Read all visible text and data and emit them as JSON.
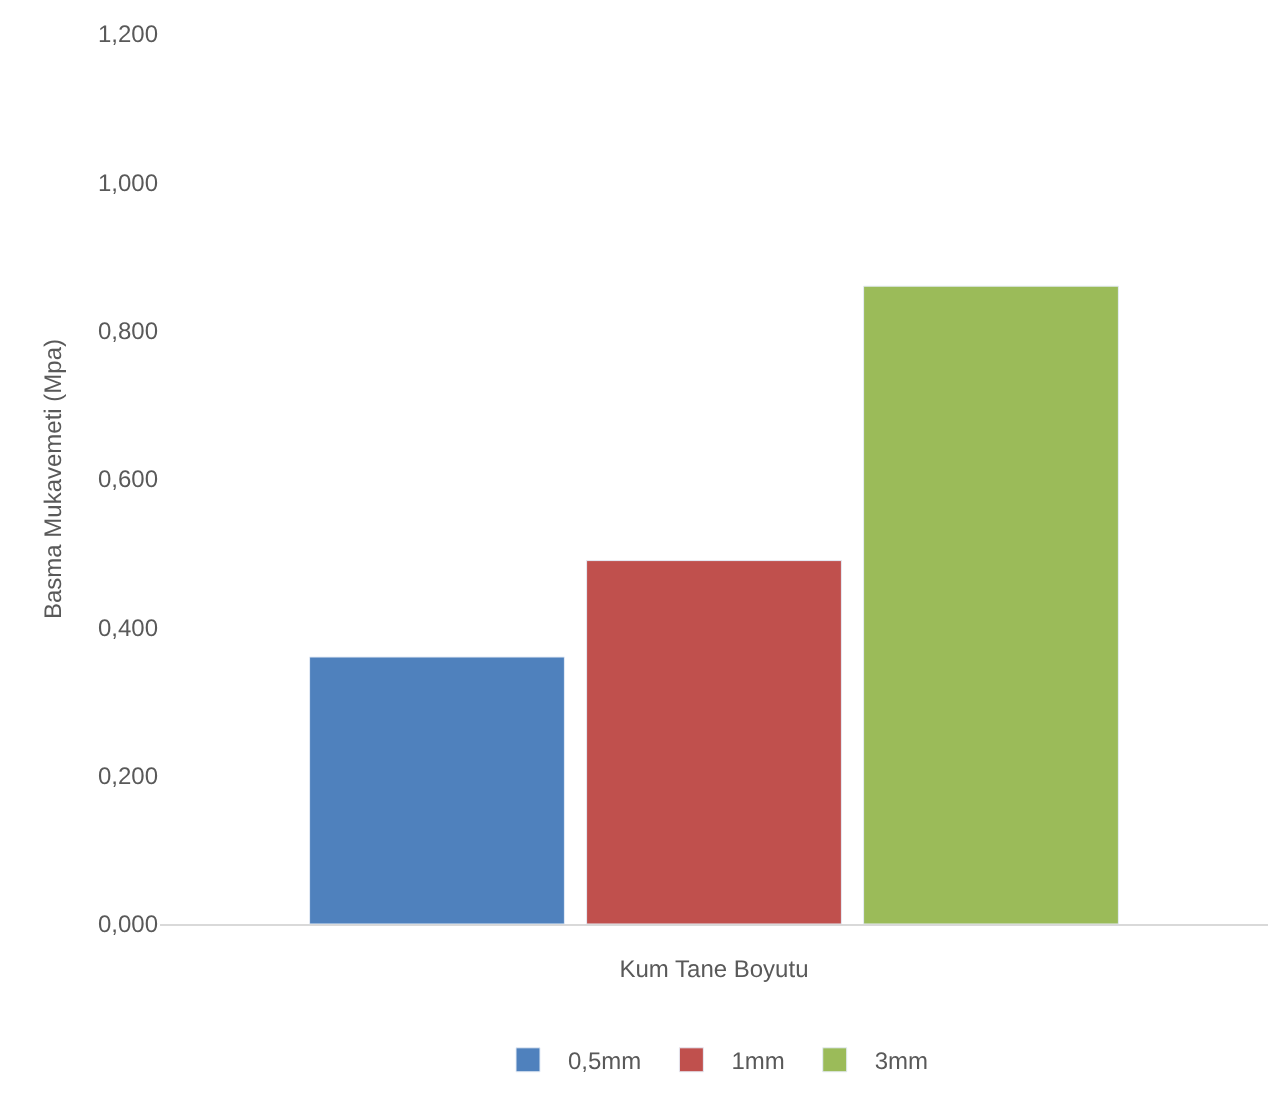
{
  "chart_data": {
    "type": "bar",
    "xlabel": "Kum Tane Boyutu",
    "ylabel": "Basma Mukavemeti (Mpa)",
    "categories": [
      null
    ],
    "series": [
      {
        "name": "0,5mm",
        "color": "#4f81bd",
        "values": [
          0.36
        ]
      },
      {
        "name": "1mm",
        "color": "#c0504d",
        "values": [
          0.49
        ]
      },
      {
        "name": "3mm",
        "color": "#9bbb59",
        "values": [
          0.86
        ]
      }
    ],
    "ylim": [
      0,
      1.2
    ],
    "yticks": [
      {
        "value": 0,
        "label": "0,000"
      },
      {
        "value": 0.2,
        "label": "0,200"
      },
      {
        "value": 0.4,
        "label": "0,400"
      },
      {
        "value": 0.6,
        "label": "0,600"
      },
      {
        "value": 0.8,
        "label": "0,800"
      },
      {
        "value": 1.0,
        "label": "1,000"
      },
      {
        "value": 1.2,
        "label": "1,200"
      }
    ],
    "legend": "bottom"
  }
}
